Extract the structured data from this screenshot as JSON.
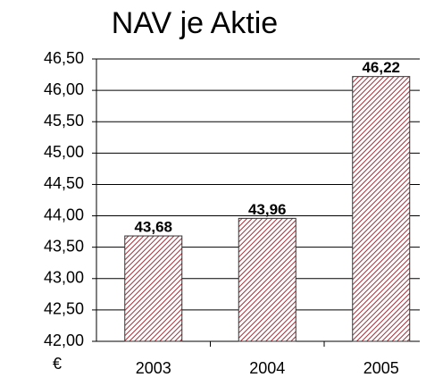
{
  "chart_data": {
    "type": "bar",
    "title": "NAV je Aktie",
    "y_axis_label": "€",
    "categories": [
      "2003",
      "2004",
      "2005"
    ],
    "values": [
      43.68,
      43.96,
      46.22
    ],
    "value_labels": [
      "43,68",
      "43,96",
      "46,22"
    ],
    "color": "#a0303a",
    "ylim": [
      42,
      46.5
    ],
    "yticks": [
      {
        "value": 42,
        "label": "42,00"
      },
      {
        "value": 42.5,
        "label": "42,50"
      },
      {
        "value": 43,
        "label": "43,00"
      },
      {
        "value": 43.5,
        "label": "43,50"
      },
      {
        "value": 44,
        "label": "44,00"
      },
      {
        "value": 44.5,
        "label": "44,50"
      },
      {
        "value": 45,
        "label": "45,00"
      },
      {
        "value": 45.5,
        "label": "45,50"
      },
      {
        "value": 46,
        "label": "46,00"
      },
      {
        "value": 46.5,
        "label": "46,50"
      }
    ],
    "grid": true
  }
}
